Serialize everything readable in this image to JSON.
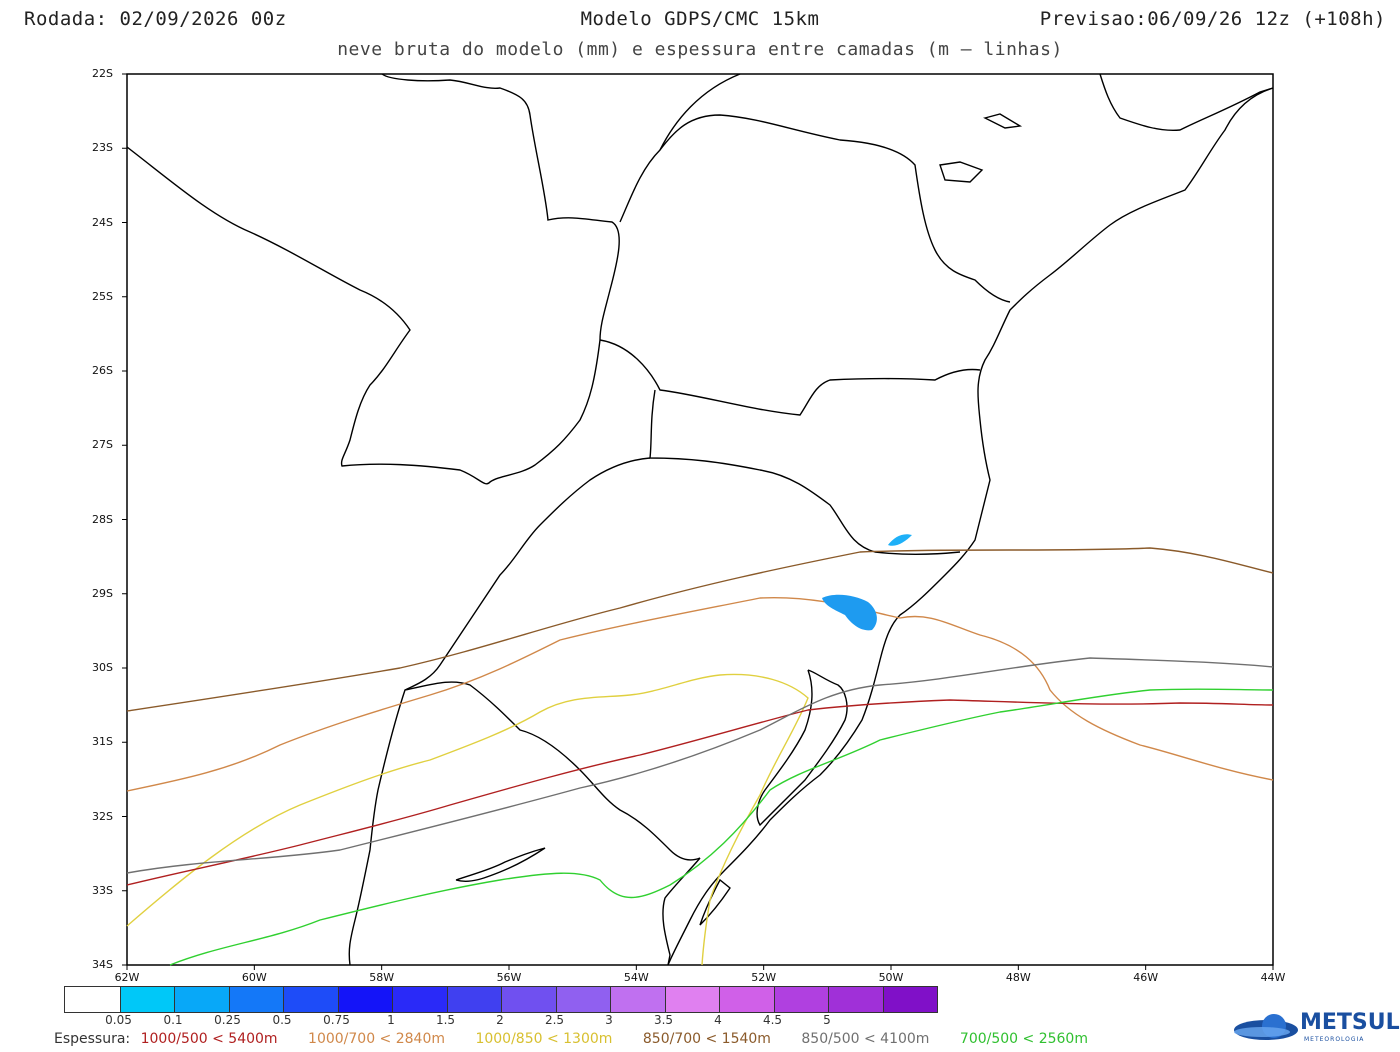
{
  "header": {
    "run": "Rodada: 02/09/2026 00z",
    "model": "Modelo GDPS/CMC 15km",
    "forecast": "Previsao:06/09/26 12z (+108h)",
    "subtitle": "neve bruta do modelo (mm) e espessura entre camadas (m – linhas)"
  },
  "map": {
    "lat_labels": [
      "22S",
      "23S",
      "24S",
      "25S",
      "26S",
      "27S",
      "28S",
      "29S",
      "30S",
      "31S",
      "32S",
      "33S",
      "34S"
    ],
    "lon_labels": [
      "62W",
      "60W",
      "58W",
      "56W",
      "54W",
      "52W",
      "50W",
      "48W",
      "46W",
      "44W"
    ],
    "snow_color": "#1e9bf0",
    "border_color": "#000000"
  },
  "colorbar": {
    "colors": [
      "#ffffff",
      "#00c8f8",
      "#08a8f8",
      "#1478f8",
      "#1e4cf8",
      "#1414f8",
      "#2a2af8",
      "#4040f0",
      "#7050f0",
      "#9060f0",
      "#c070f0",
      "#e080f0",
      "#d060e8",
      "#b040e0",
      "#a030d8",
      "#8010c8"
    ],
    "labels": [
      "0.05",
      "0.1",
      "0.25",
      "0.5",
      "0.75",
      "1",
      "1.5",
      "2",
      "2.5",
      "3",
      "3.5",
      "4",
      "4.5",
      "5"
    ]
  },
  "legend": {
    "prefix": "Espessura:",
    "items": [
      {
        "label": "1000/500 < 5400m",
        "color": "#b02020"
      },
      {
        "label": "1000/700 < 2840m",
        "color": "#d0884a"
      },
      {
        "label": "1000/850 < 1300m",
        "color": "#e0d040"
      },
      {
        "label": "850/700 < 1540m",
        "color": "#8a5a2a"
      },
      {
        "label": "850/500 < 4100m",
        "color": "#707070"
      },
      {
        "label": "700/500 < 2560m",
        "color": "#30d030"
      }
    ]
  },
  "logo": {
    "name": "METSUL",
    "sub": "METEOROLOGIA"
  }
}
